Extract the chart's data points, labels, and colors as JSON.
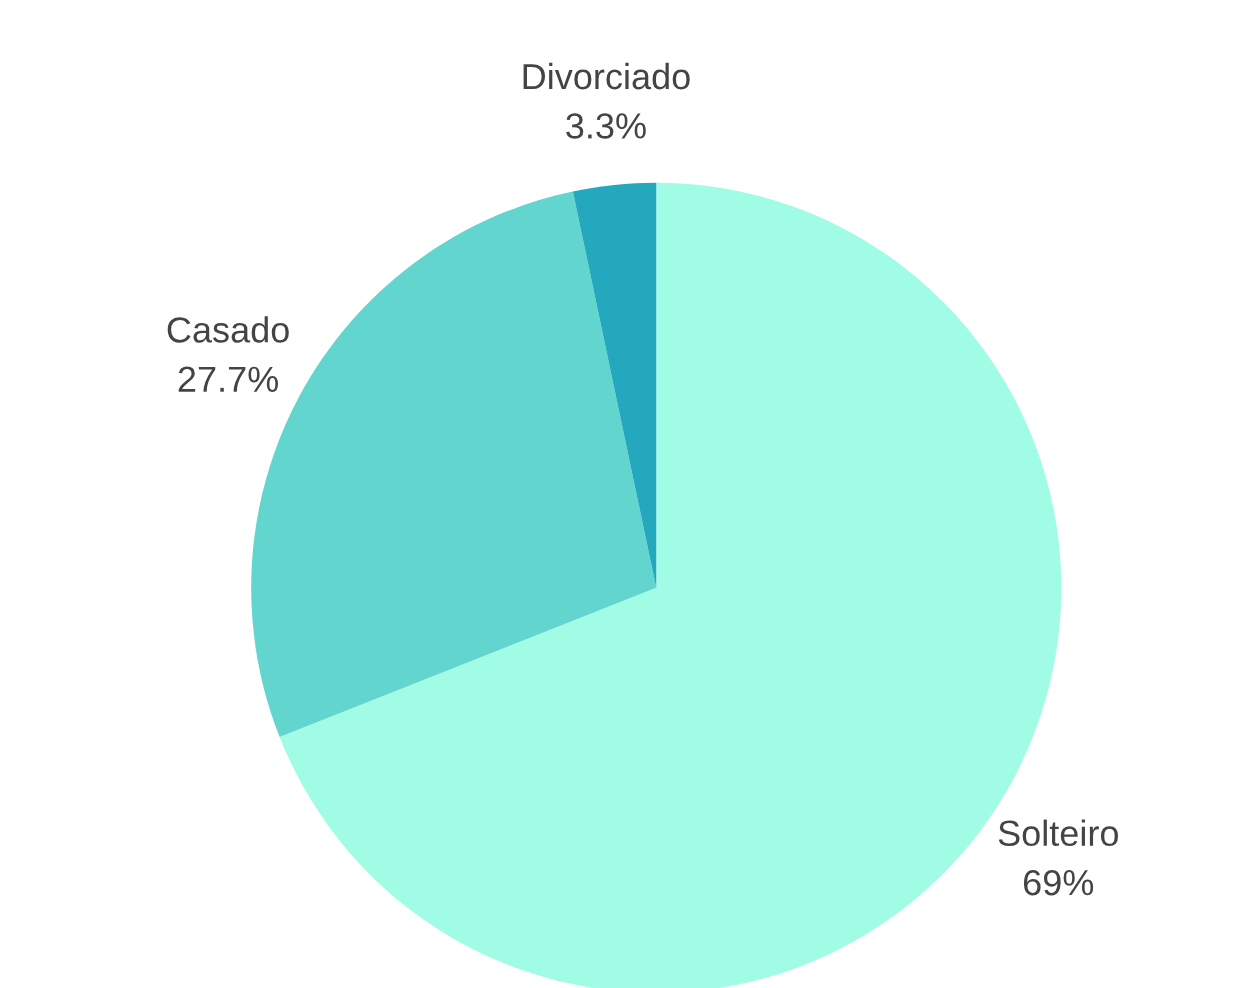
{
  "chart_data": {
    "type": "pie",
    "categories": [
      "Solteiro",
      "Casado",
      "Divorciado"
    ],
    "values": [
      69,
      27.7,
      3.3
    ],
    "value_labels": [
      "69%",
      "27.7%",
      "3.3%"
    ],
    "colors": [
      "#a0fce4",
      "#62d5cf",
      "#23a8be"
    ]
  }
}
